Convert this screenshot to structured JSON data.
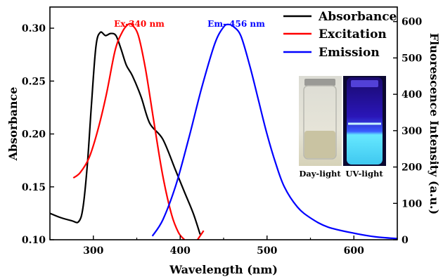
{
  "chart_data": {
    "type": "line",
    "xlabel": "Wavelength (nm)",
    "ylabel_left": "Absorbance",
    "ylabel_right": "Fluorescence Intensity (a.u.)",
    "xlim": [
      250,
      650
    ],
    "ylim_left": [
      0.1,
      0.32
    ],
    "ylim_right": [
      0,
      640
    ],
    "x_ticks": [
      300,
      400,
      500,
      600
    ],
    "x_tick_labels": [
      "300",
      "400",
      "500",
      "600"
    ],
    "y_left_ticks": [
      0.1,
      0.15,
      0.2,
      0.25,
      0.3
    ],
    "y_left_tick_labels": [
      "0.10",
      "0.15",
      "0.20",
      "0.25",
      "0.30"
    ],
    "y_right_ticks": [
      0,
      100,
      200,
      300,
      400,
      500,
      600
    ],
    "y_right_tick_labels": [
      "0",
      "100",
      "200",
      "300",
      "400",
      "500",
      "600"
    ],
    "legend_position": "top-right",
    "grid": false,
    "series": [
      {
        "name": "Absorbance",
        "color": "#000000",
        "axis": "left",
        "x": [
          250,
          262,
          275,
          283,
          288,
          293,
          298,
          303,
          308,
          314,
          320,
          326,
          332,
          338,
          345,
          355,
          365,
          380,
          395,
          405,
          415,
          423
        ],
        "y": [
          0.125,
          0.121,
          0.118,
          0.117,
          0.13,
          0.17,
          0.23,
          0.283,
          0.296,
          0.293,
          0.295,
          0.293,
          0.28,
          0.265,
          0.255,
          0.235,
          0.21,
          0.195,
          0.165,
          0.145,
          0.125,
          0.105
        ]
      },
      {
        "name": "Excitation",
        "color": "#ff0000",
        "axis": "right",
        "x": [
          277,
          285,
          295,
          305,
          315,
          325,
          333,
          340,
          345,
          352,
          360,
          370,
          380,
          390,
          398,
          405
        ],
        "y": [
          170,
          185,
          225,
          300,
          400,
          520,
          570,
          592,
          590,
          560,
          470,
          320,
          175,
          70,
          20,
          0
        ],
        "extra_tail": {
          "x": [
            420,
            427
          ],
          "y": [
            0,
            25
          ]
        }
      },
      {
        "name": "Emission",
        "color": "#0000ff",
        "axis": "right",
        "x": [
          368,
          380,
          395,
          410,
          425,
          440,
          450,
          456,
          462,
          470,
          480,
          490,
          500,
          510,
          520,
          535,
          550,
          570,
          600,
          625,
          650
        ],
        "y": [
          10,
          55,
          150,
          280,
          420,
          540,
          585,
          592,
          585,
          560,
          480,
          385,
          290,
          210,
          145,
          90,
          60,
          35,
          18,
          8,
          3
        ]
      }
    ],
    "annotations": [
      {
        "text": "Ex-340 nm",
        "color": "#ff0000"
      },
      {
        "text": "Em- 456 nm",
        "color": "#0000ff"
      }
    ],
    "inset": {
      "daylight_label": "Day-light",
      "uv_label": "UV-light"
    }
  }
}
